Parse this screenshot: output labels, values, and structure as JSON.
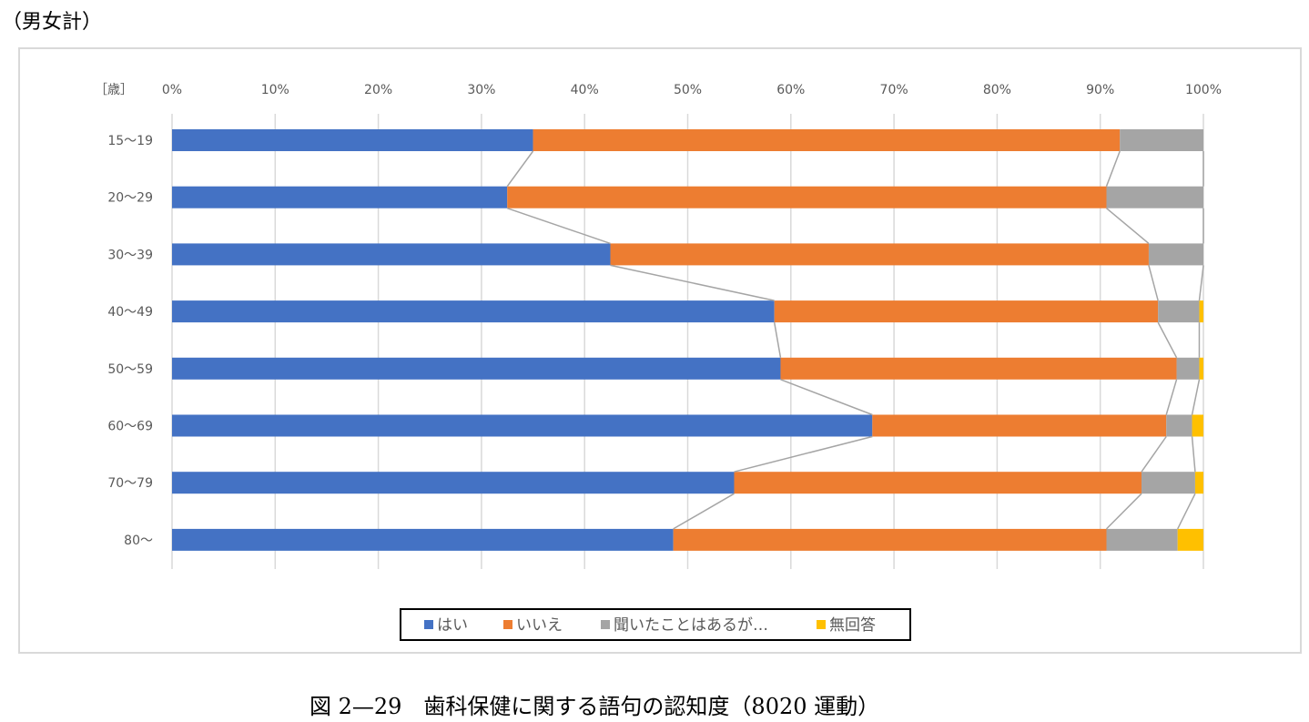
{
  "note": "（男女計）",
  "caption": "図 2—29　歯科保健に関する語句の認知度（8020 運動）",
  "chart_data": {
    "type": "bar",
    "orientation": "horizontal",
    "stacked": "percent",
    "unit_label": "［歳］",
    "categories": [
      "15〜19",
      "20〜29",
      "30〜39",
      "40〜49",
      "50〜59",
      "60〜69",
      "70〜79",
      "80〜"
    ],
    "x_ticks": [
      "0%",
      "10%",
      "20%",
      "30%",
      "40%",
      "50%",
      "60%",
      "70%",
      "80%",
      "90%",
      "100%"
    ],
    "xlim": [
      0,
      100
    ],
    "grid": true,
    "series_lines": true,
    "legend_position": "bottom",
    "series": [
      {
        "name": "はい",
        "color": "#4472c4",
        "values": [
          35.0,
          32.5,
          42.5,
          58.4,
          59.0,
          67.9,
          54.5,
          48.6
        ]
      },
      {
        "name": "いいえ",
        "color": "#ed7d31",
        "values": [
          56.9,
          58.1,
          52.2,
          37.2,
          38.4,
          28.5,
          39.5,
          42.0
        ]
      },
      {
        "name": "聞いたことはあるが…",
        "color": "#a5a5a5",
        "values": [
          8.1,
          9.4,
          5.3,
          4.0,
          2.2,
          2.5,
          5.2,
          6.9
        ]
      },
      {
        "name": "無回答",
        "color": "#ffc000",
        "values": [
          0.0,
          0.0,
          0.0,
          0.4,
          0.4,
          1.1,
          0.8,
          2.5
        ]
      }
    ]
  }
}
